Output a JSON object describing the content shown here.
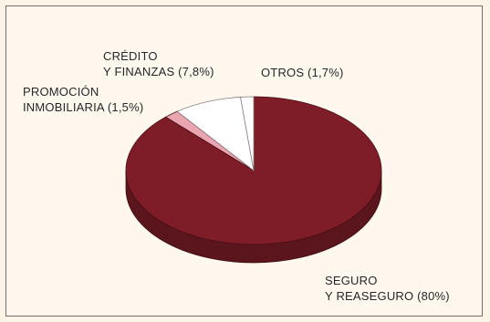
{
  "chart_data": {
    "type": "pie",
    "title": "",
    "three_d": true,
    "slices": [
      {
        "label_lines": [
          "SEGURO",
          "Y REASEGURO (80%)"
        ],
        "value": 80,
        "color": "#7e1d27"
      },
      {
        "label_lines": [
          "OTROS (1,7%)"
        ],
        "value": 1.7,
        "color": "#e9a6b1"
      },
      {
        "label_lines": [
          "CRÉDITO",
          "Y FINANZAS (7,8%)"
        ],
        "value": 7.8,
        "color": "#ffffff"
      },
      {
        "label_lines": [
          "PROMOCIÓN",
          "INMOBILIARIA (1,5%)"
        ],
        "value": 1.5,
        "color": "#ffffff"
      }
    ]
  }
}
